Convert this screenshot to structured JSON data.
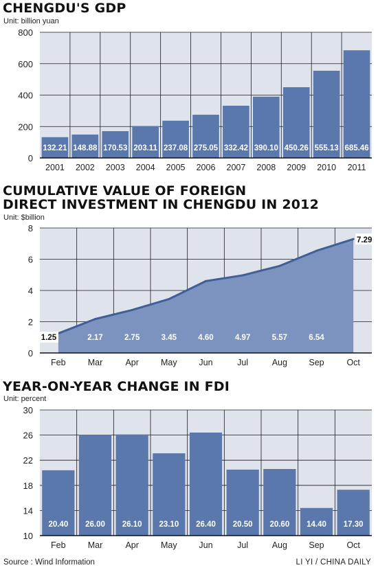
{
  "footer": {
    "source": "Source :  Wind Information",
    "credit": "LI YI / CHINA DAILY"
  },
  "chart_data": [
    {
      "type": "bar",
      "title": "CHENGDU'S GDP",
      "unit": "Unit: billion yuan",
      "categories": [
        "2001",
        "2002",
        "2003",
        "2004",
        "2005",
        "2006",
        "2007",
        "2008",
        "2009",
        "2010",
        "2011"
      ],
      "values": [
        132.21,
        148.88,
        170.53,
        203.11,
        237.08,
        275.05,
        332.42,
        390.1,
        450.26,
        555.13,
        685.46
      ],
      "value_labels": [
        "132.21",
        "148.88",
        "170.53",
        "203.11",
        "237.08",
        "275.05",
        "332.42",
        "390.10",
        "450.26",
        "555.13",
        "685.46"
      ],
      "ylim": [
        0,
        800
      ],
      "yticks": [
        0,
        200,
        400,
        600,
        800
      ],
      "grid": true,
      "color": "#5a78ab"
    },
    {
      "type": "area",
      "title": [
        "CUMULATIVE VALUE OF FOREIGN",
        "DIRECT INVESTMENT IN CHENGDU IN 2012"
      ],
      "unit": "Unit: $billion",
      "categories": [
        "Feb",
        "Mar",
        "Apr",
        "May",
        "Jun",
        "Jul",
        "Aug",
        "Sep",
        "Oct"
      ],
      "values": [
        1.25,
        2.17,
        2.75,
        3.45,
        4.6,
        4.97,
        5.57,
        6.54,
        7.29
      ],
      "value_labels": [
        "1.25",
        "2.17",
        "2.75",
        "3.45",
        "4.60",
        "4.97",
        "5.57",
        "6.54",
        "7.29"
      ],
      "ylim": [
        0,
        8
      ],
      "yticks": [
        0,
        2,
        4,
        6,
        8
      ],
      "grid": true,
      "color": "#5a78ab"
    },
    {
      "type": "bar",
      "title": "YEAR-ON-YEAR CHANGE IN FDI",
      "unit": "Unit: percent",
      "categories": [
        "Feb",
        "Mar",
        "Apr",
        "May",
        "Jun",
        "Jul",
        "Aug",
        "Sep",
        "Oct"
      ],
      "values": [
        20.4,
        26.0,
        26.1,
        23.1,
        26.4,
        20.5,
        20.6,
        14.4,
        17.3
      ],
      "value_labels": [
        "20.40",
        "26.00",
        "26.10",
        "23.10",
        "26.40",
        "20.50",
        "20.60",
        "14.40",
        "17.30"
      ],
      "ylim": [
        10,
        30
      ],
      "yticks": [
        10,
        14,
        18,
        22,
        26,
        30
      ],
      "grid": true,
      "color": "#5a78ab"
    }
  ]
}
